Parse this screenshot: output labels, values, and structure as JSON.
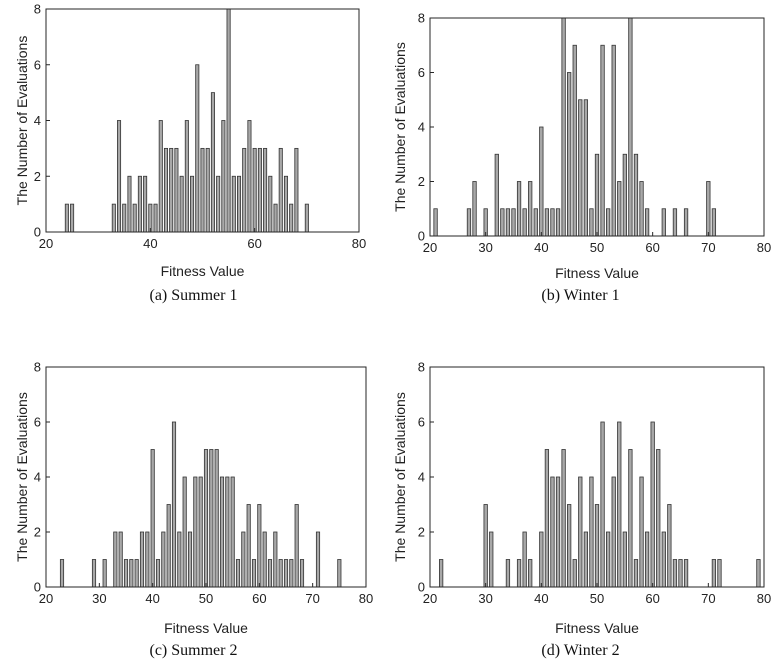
{
  "chart_data": [
    {
      "type": "bar",
      "caption": "(a) Summer 1",
      "xlabel": "Fitness Value",
      "ylabel": "The Number of Evaluations",
      "xlim": [
        20,
        80
      ],
      "ylim": [
        0,
        8
      ],
      "xticks": [
        "20",
        "40",
        "60",
        "80"
      ],
      "yticks": [
        "0",
        "2",
        "4",
        "6",
        "8"
      ],
      "x": [
        24,
        25,
        33,
        34,
        35,
        36,
        37,
        38,
        39,
        40,
        41,
        42,
        43,
        44,
        45,
        46,
        47,
        48,
        49,
        50,
        51,
        52,
        53,
        54,
        55,
        56,
        57,
        58,
        59,
        60,
        61,
        62,
        63,
        64,
        65,
        66,
        67,
        68,
        70
      ],
      "values": [
        1,
        1,
        1,
        4,
        1,
        2,
        1,
        2,
        2,
        1,
        1,
        4,
        3,
        3,
        3,
        2,
        4,
        2,
        6,
        3,
        3,
        5,
        2,
        4,
        8,
        2,
        2,
        3,
        4,
        3,
        3,
        3,
        2,
        1,
        3,
        2,
        1,
        3,
        1
      ]
    },
    {
      "type": "bar",
      "caption": "(b) Winter 1",
      "xlabel": "Fitness Value",
      "ylabel": "The Number of Evaluations",
      "xlim": [
        20,
        80
      ],
      "ylim": [
        0,
        8
      ],
      "xticks": [
        "20",
        "30",
        "40",
        "50",
        "60",
        "70",
        "80"
      ],
      "yticks": [
        "0",
        "2",
        "4",
        "6",
        "8"
      ],
      "x": [
        21,
        27,
        28,
        30,
        32,
        33,
        34,
        35,
        36,
        37,
        38,
        39,
        40,
        41,
        42,
        43,
        44,
        45,
        46,
        47,
        48,
        49,
        50,
        51,
        52,
        53,
        54,
        55,
        56,
        57,
        58,
        59,
        62,
        64,
        66,
        70,
        71
      ],
      "values": [
        1,
        1,
        2,
        1,
        3,
        1,
        1,
        1,
        2,
        1,
        2,
        1,
        4,
        1,
        1,
        1,
        8,
        6,
        7,
        5,
        5,
        1,
        3,
        7,
        1,
        7,
        2,
        3,
        8,
        3,
        2,
        1,
        1,
        1,
        1,
        2,
        1
      ]
    },
    {
      "type": "bar",
      "caption": "(c) Summer 2",
      "xlabel": "Fitness Value",
      "ylabel": "The Number of Evaluations",
      "xlim": [
        20,
        80
      ],
      "ylim": [
        0,
        8
      ],
      "xticks": [
        "20",
        "30",
        "40",
        "50",
        "60",
        "70",
        "80"
      ],
      "yticks": [
        "0",
        "2",
        "4",
        "6",
        "8"
      ],
      "x": [
        23,
        29,
        31,
        33,
        34,
        35,
        36,
        37,
        38,
        39,
        40,
        41,
        42,
        43,
        44,
        45,
        46,
        47,
        48,
        49,
        50,
        51,
        52,
        53,
        54,
        55,
        56,
        57,
        58,
        59,
        60,
        61,
        62,
        63,
        64,
        65,
        66,
        67,
        68,
        71,
        75
      ],
      "values": [
        1,
        1,
        1,
        2,
        2,
        1,
        1,
        1,
        2,
        2,
        5,
        1,
        2,
        3,
        6,
        2,
        4,
        2,
        4,
        4,
        5,
        5,
        5,
        4,
        4,
        4,
        1,
        2,
        3,
        1,
        3,
        2,
        1,
        2,
        1,
        1,
        1,
        3,
        1,
        2,
        1
      ]
    },
    {
      "type": "bar",
      "caption": "(d) Winter 2",
      "xlabel": "Fitness Value",
      "ylabel": "The Number of Evaluations",
      "xlim": [
        20,
        80
      ],
      "ylim": [
        0,
        8
      ],
      "xticks": [
        "20",
        "30",
        "40",
        "50",
        "60",
        "70",
        "80"
      ],
      "yticks": [
        "0",
        "2",
        "4",
        "6",
        "8"
      ],
      "x": [
        22,
        30,
        31,
        34,
        36,
        37,
        38,
        40,
        41,
        42,
        43,
        44,
        45,
        46,
        47,
        48,
        49,
        50,
        51,
        52,
        53,
        54,
        55,
        56,
        57,
        58,
        59,
        60,
        61,
        62,
        63,
        64,
        65,
        66,
        71,
        72,
        79
      ],
      "values": [
        1,
        3,
        2,
        1,
        1,
        2,
        1,
        2,
        5,
        4,
        4,
        5,
        3,
        1,
        4,
        2,
        4,
        3,
        6,
        2,
        4,
        6,
        2,
        5,
        1,
        4,
        2,
        6,
        5,
        2,
        3,
        1,
        1,
        1,
        1,
        1,
        1
      ]
    }
  ],
  "colors": {
    "bar_fill": "#a8a8a8",
    "bar_stroke": "#333333",
    "axis": "#262626"
  }
}
